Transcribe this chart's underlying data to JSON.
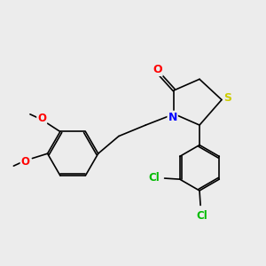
{
  "bg_color": "#ececec",
  "bond_color": "#000000",
  "atom_colors": {
    "O": "#ff0000",
    "N": "#0000ff",
    "S": "#cccc00",
    "Cl": "#00bb00",
    "C": "#000000"
  },
  "figsize": [
    3.0,
    3.0
  ],
  "dpi": 100
}
